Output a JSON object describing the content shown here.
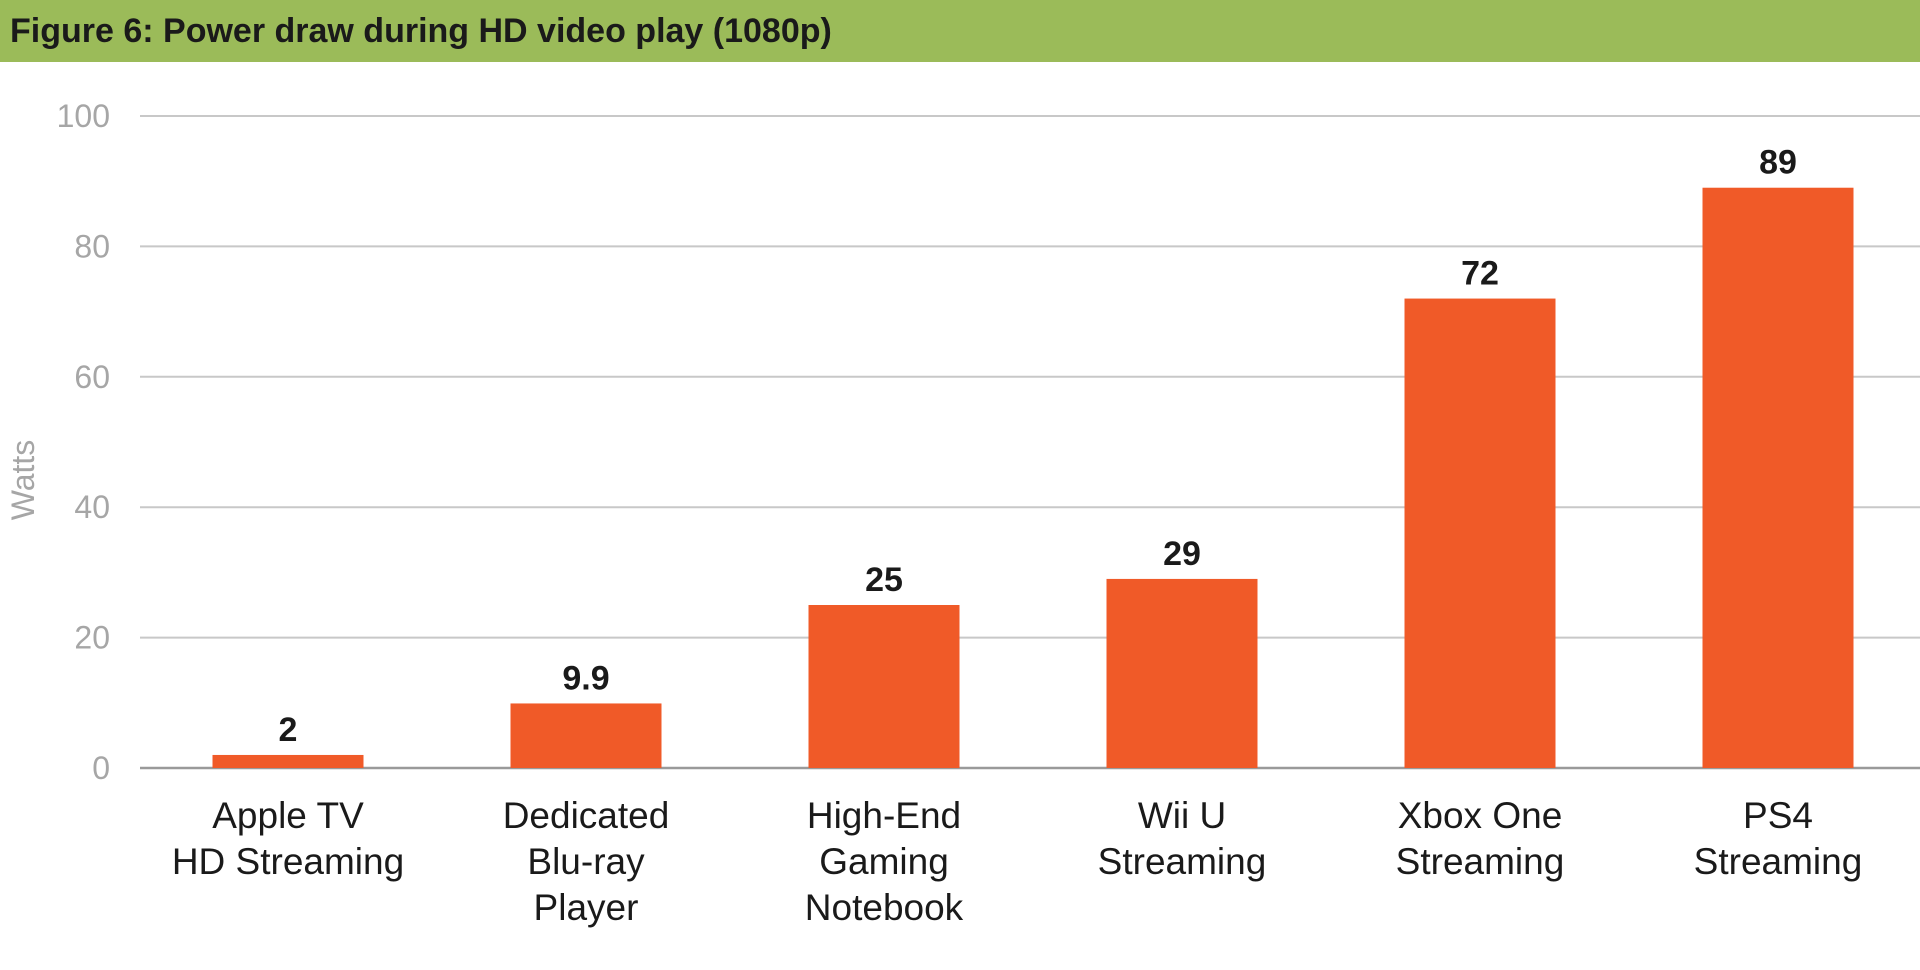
{
  "header": {
    "title": "Figure 6: Power draw during HD video play (1080p)",
    "background_color": "#9bbb59"
  },
  "chart_data": {
    "type": "bar",
    "title": "Figure 6: Power draw during HD video play (1080p)",
    "xlabel": "",
    "ylabel": "Watts",
    "ylim": [
      0,
      100
    ],
    "yticks": [
      0,
      20,
      40,
      60,
      80,
      100
    ],
    "grid": true,
    "legend": "none",
    "bar_color": "#f05a28",
    "categories": [
      [
        "Apple TV",
        "HD Streaming"
      ],
      [
        "Dedicated",
        "Blu-ray",
        "Player"
      ],
      [
        "High-End",
        "Gaming",
        "Notebook"
      ],
      [
        "Wii U",
        "Streaming"
      ],
      [
        "Xbox One",
        "Streaming"
      ],
      [
        "PS4",
        "Streaming"
      ]
    ],
    "values": [
      2,
      9.9,
      25,
      29,
      72,
      89
    ],
    "value_labels": [
      "2",
      "9.9",
      "25",
      "29",
      "72",
      "89"
    ]
  }
}
